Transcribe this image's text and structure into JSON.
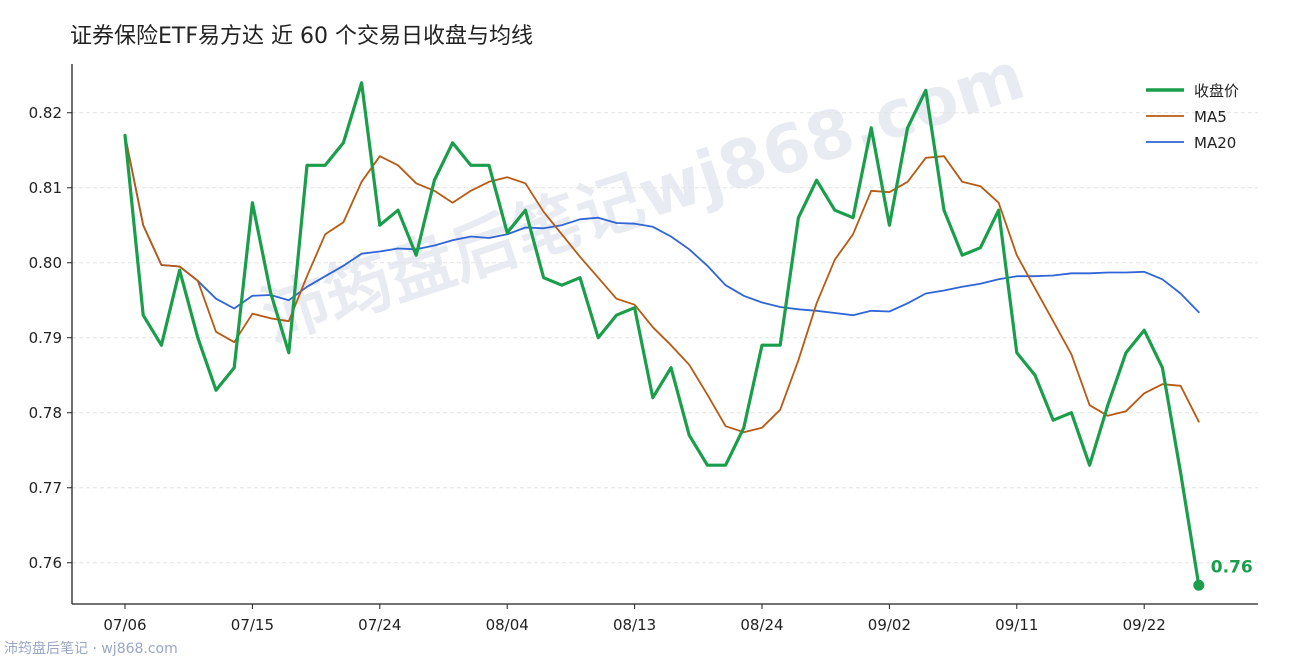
{
  "page": {
    "title": "证券保险ETF易方达 近 60 个交易日收盘与均线",
    "footer": "沛筠盘后笔记 · wj868.com",
    "watermark": "沛筠盘后笔记wj868.com"
  },
  "colors": {
    "close": "#1a9e4b",
    "ma5": "#b85a12",
    "ma20": "#2f65d6",
    "grid": "#e3e3e3"
  },
  "chart_data": {
    "type": "line",
    "title": "证券保险ETF易方达 近 60 个交易日收盘与均线",
    "xlabel": "",
    "ylabel": "",
    "x_tick_labels": [
      "07/06",
      "07/15",
      "07/24",
      "08/04",
      "08/13",
      "08/24",
      "09/02",
      "09/11",
      "09/22"
    ],
    "x_tick_indices": [
      0,
      7,
      14,
      21,
      28,
      35,
      42,
      49,
      56
    ],
    "ylim": [
      0.7545,
      0.8265
    ],
    "yticks": [
      "0.76",
      "0.77",
      "0.78",
      "0.79",
      "0.80",
      "0.81",
      "0.82"
    ],
    "grid": "horizontal dashed",
    "legend": "top-right",
    "end_label": "0.76",
    "series": [
      {
        "name": "收盘价",
        "values": [
          0.817,
          0.793,
          0.789,
          0.799,
          0.79,
          0.783,
          0.786,
          0.808,
          0.796,
          0.788,
          0.813,
          0.813,
          0.816,
          0.824,
          0.805,
          0.807,
          0.801,
          0.811,
          0.816,
          0.813,
          0.813,
          0.804,
          0.807,
          0.798,
          0.797,
          0.798,
          0.79,
          0.793,
          0.794,
          0.782,
          0.786,
          0.777,
          0.773,
          0.773,
          0.778,
          0.789,
          0.789,
          0.806,
          0.811,
          0.807,
          0.806,
          0.818,
          0.805,
          0.818,
          0.823,
          0.807,
          0.801,
          0.802,
          0.807,
          0.788,
          0.785,
          0.779,
          0.78,
          0.773,
          0.781,
          0.788,
          0.791,
          0.786,
          0.772,
          0.757
        ]
      },
      {
        "name": "MA5",
        "values": [
          0.817,
          0.805,
          0.7997,
          0.7995,
          0.7976,
          0.7908,
          0.7894,
          0.7932,
          0.7926,
          0.7922,
          0.7982,
          0.8038,
          0.8054,
          0.8108,
          0.8142,
          0.813,
          0.8106,
          0.8096,
          0.808,
          0.8096,
          0.8108,
          0.8114,
          0.8106,
          0.8068,
          0.8038,
          0.8008,
          0.798,
          0.7952,
          0.7944,
          0.7914,
          0.789,
          0.7864,
          0.7824,
          0.7782,
          0.7774,
          0.778,
          0.7804,
          0.787,
          0.7946,
          0.8004,
          0.8038,
          0.8096,
          0.8094,
          0.8108,
          0.814,
          0.8142,
          0.8108,
          0.8102,
          0.808,
          0.801,
          0.7966,
          0.7922,
          0.7878,
          0.781,
          0.7796,
          0.7802,
          0.7826,
          0.7838,
          0.7836,
          0.7788
        ]
      },
      {
        "name": "MA20",
        "values": [
          0.817,
          0.805,
          0.7997,
          0.7995,
          0.7976,
          0.7952,
          0.7939,
          0.7956,
          0.7957,
          0.795,
          0.7968,
          0.7982,
          0.7996,
          0.8012,
          0.8015,
          0.8019,
          0.8018,
          0.8023,
          0.803,
          0.8035,
          0.8033,
          0.8038,
          0.8047,
          0.8046,
          0.805,
          0.8058,
          0.806,
          0.8053,
          0.8052,
          0.8048,
          0.8035,
          0.8018,
          0.7996,
          0.797,
          0.7956,
          0.7947,
          0.7941,
          0.7938,
          0.7936,
          0.7933,
          0.793,
          0.7936,
          0.7935,
          0.7946,
          0.7959,
          0.7963,
          0.7968,
          0.7972,
          0.7978,
          0.7982,
          0.7982,
          0.7983,
          0.7986,
          0.7986,
          0.7987,
          0.7987,
          0.7988,
          0.7978,
          0.7959,
          0.7934
        ]
      }
    ]
  }
}
